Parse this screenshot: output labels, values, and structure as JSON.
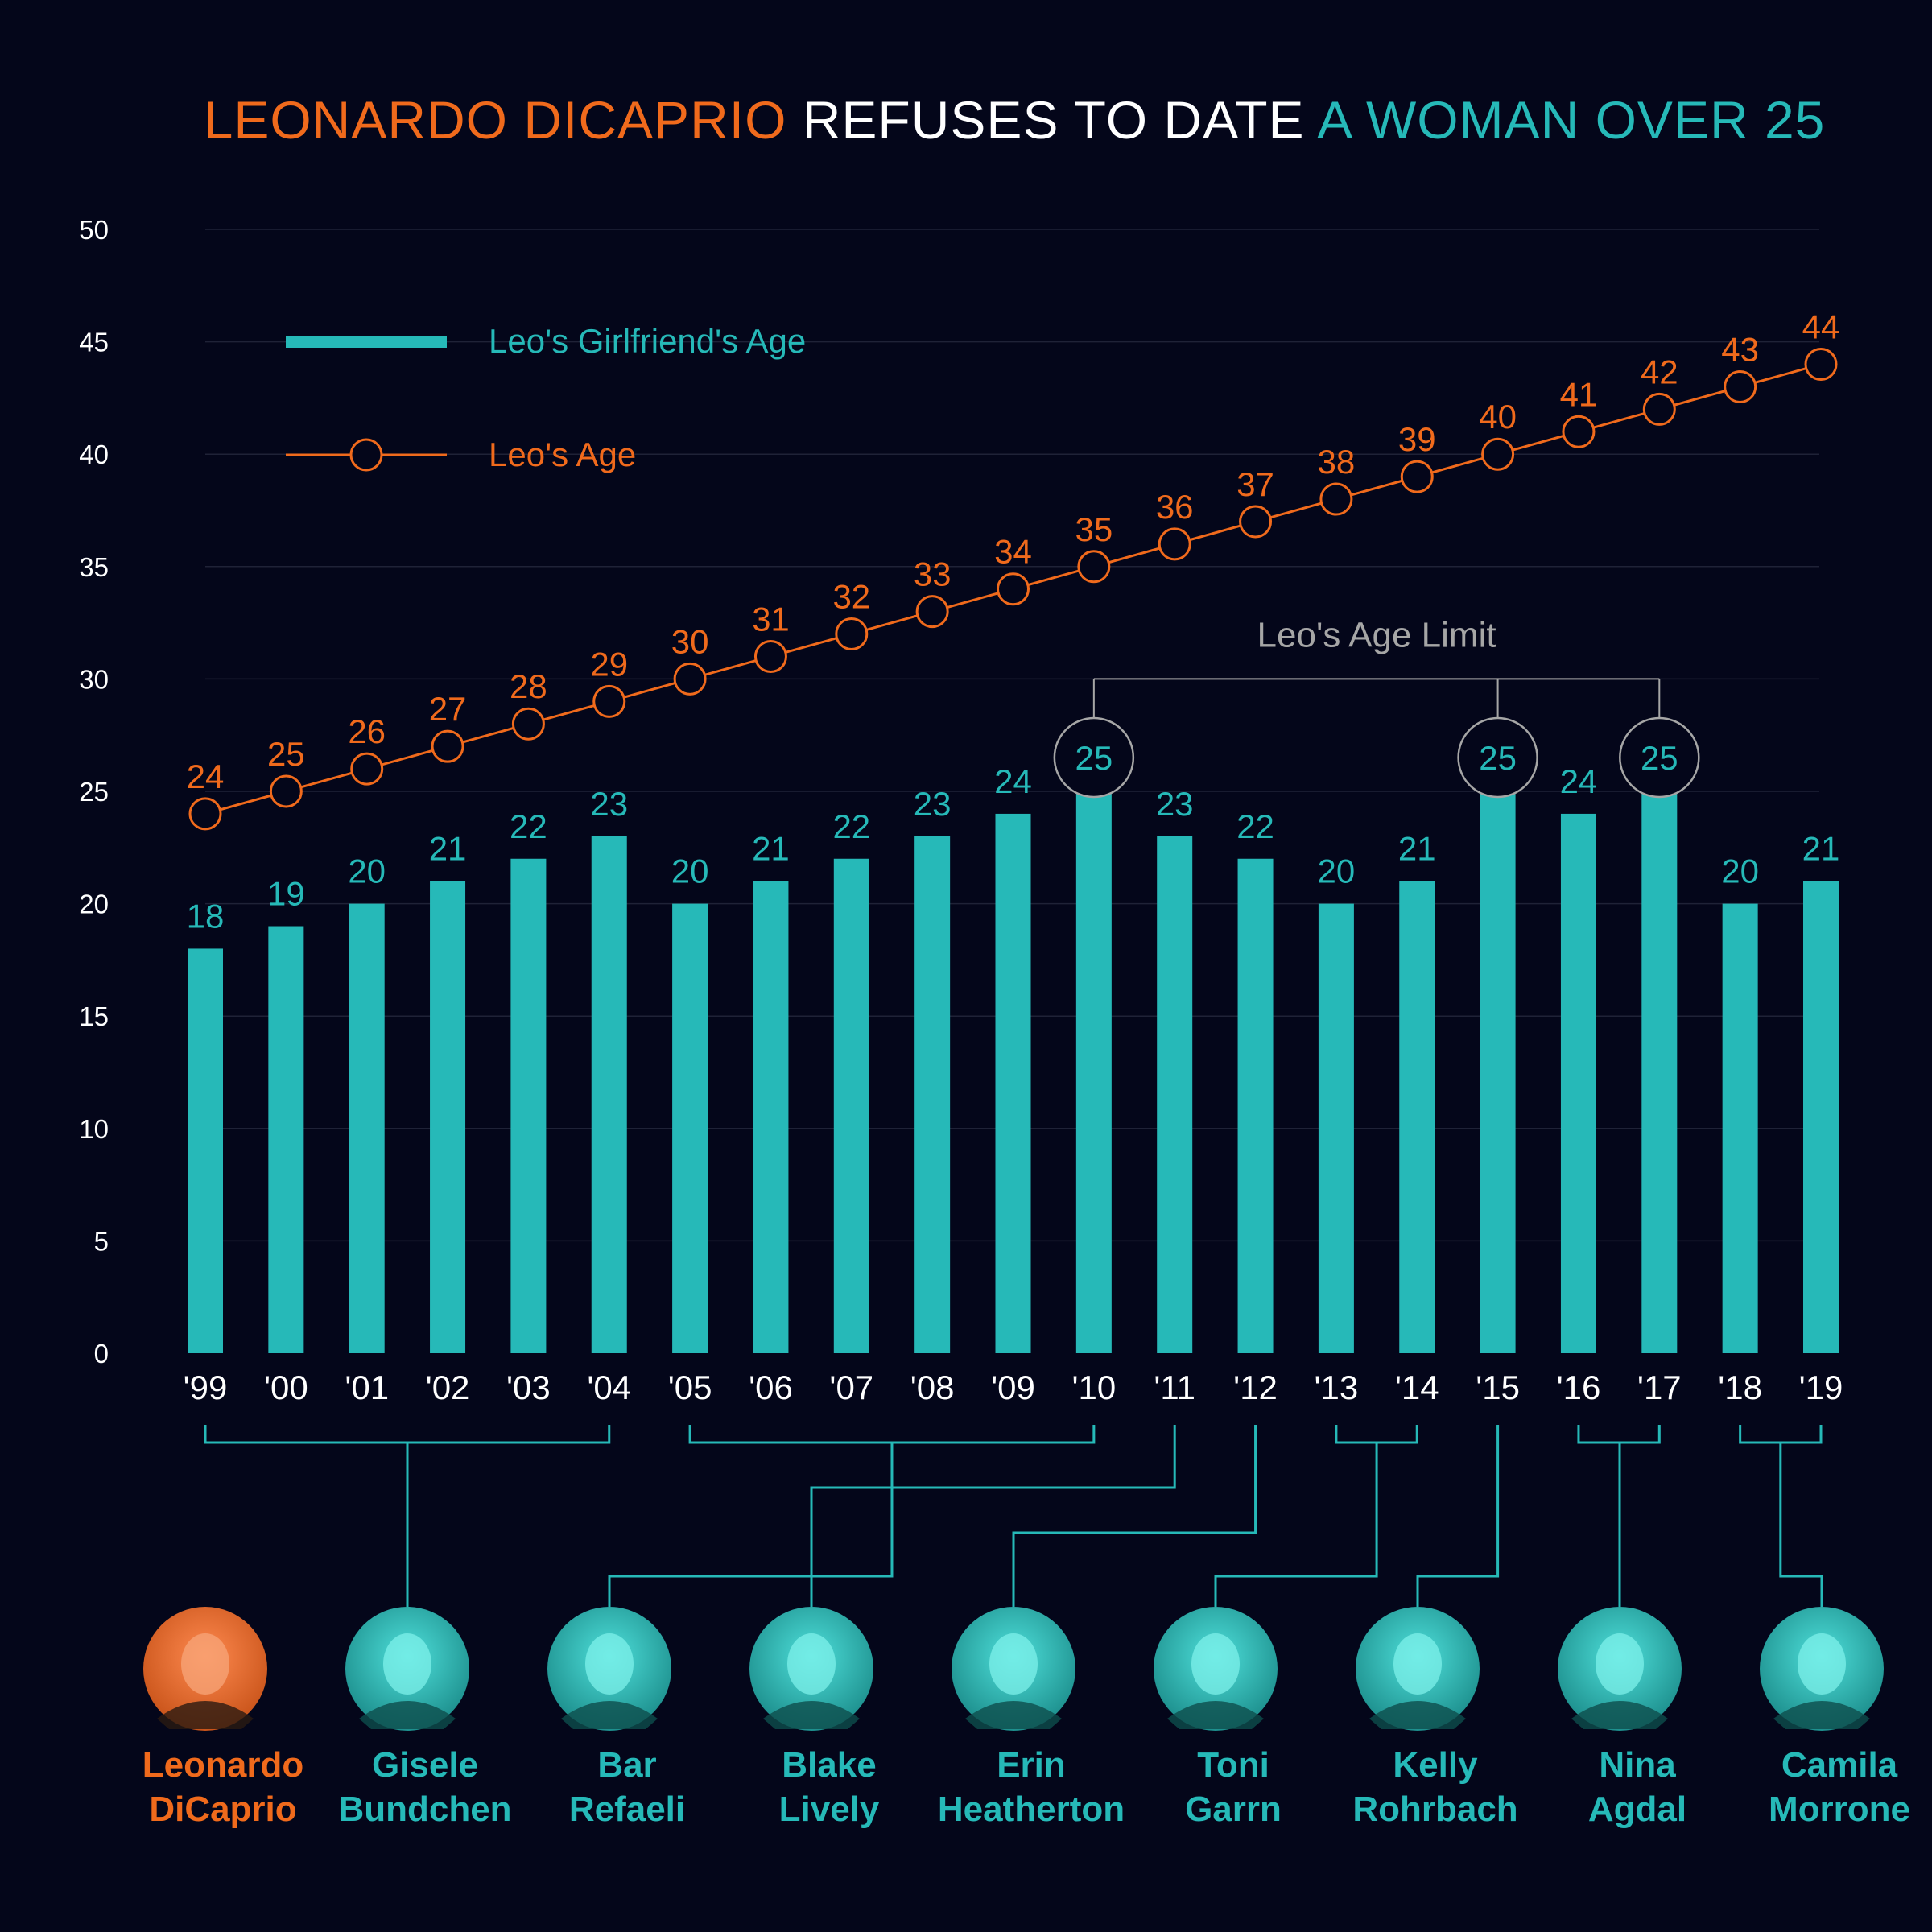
{
  "colors": {
    "background": "#04061a",
    "orange": "#f06a1c",
    "teal": "#26b9b8",
    "white": "#ffffff",
    "grey": "#a6a6a6",
    "grid": "#1f2237"
  },
  "title": {
    "part1": "LEONARDO DICAPRIO",
    "part2": " REFUSES TO DATE ",
    "part3": "A WOMAN OVER 25"
  },
  "legend": {
    "bar_label": "Leo's Girlfriend's Age",
    "line_label": "Leo's Age"
  },
  "annotation": {
    "age_limit_label": "Leo's Age Limit"
  },
  "chart_data": {
    "type": "bar+line",
    "categories": [
      "'99",
      "'00",
      "'01",
      "'02",
      "'03",
      "'04",
      "'05",
      "'06",
      "'07",
      "'08",
      "'09",
      "'10",
      "'11",
      "'12",
      "'13",
      "'14",
      "'15",
      "'16",
      "'17",
      "'18",
      "'19"
    ],
    "series": [
      {
        "name": "Leo's Girlfriend's Age",
        "type": "bar",
        "values": [
          18,
          19,
          20,
          21,
          22,
          23,
          20,
          21,
          22,
          23,
          24,
          25,
          23,
          22,
          20,
          21,
          25,
          24,
          25,
          20,
          21
        ]
      },
      {
        "name": "Leo's Age",
        "type": "line",
        "values": [
          24,
          25,
          26,
          27,
          28,
          29,
          30,
          31,
          32,
          33,
          34,
          35,
          36,
          37,
          38,
          39,
          40,
          41,
          42,
          43,
          44
        ]
      }
    ],
    "ylim": [
      0,
      50
    ],
    "yticks": [
      0,
      5,
      10,
      15,
      20,
      25,
      30,
      35,
      40,
      45,
      50
    ],
    "highlighted_years": [
      "'10",
      "'15",
      "'17"
    ],
    "age_limit": 25
  },
  "people": [
    {
      "first": "Leonardo",
      "last": "DiCaprio",
      "is_leo": true,
      "years": []
    },
    {
      "first": "Gisele",
      "last": "Bundchen",
      "is_leo": false,
      "years": [
        "'99",
        "'00",
        "'01",
        "'02",
        "'03",
        "'04"
      ]
    },
    {
      "first": "Bar",
      "last": "Refaeli",
      "is_leo": false,
      "years": [
        "'05",
        "'06",
        "'07",
        "'08",
        "'09",
        "'10"
      ]
    },
    {
      "first": "Blake",
      "last": "Lively",
      "is_leo": false,
      "years": [
        "'11"
      ]
    },
    {
      "first": "Erin",
      "last": "Heatherton",
      "is_leo": false,
      "years": [
        "'12"
      ]
    },
    {
      "first": "Toni",
      "last": "Garrn",
      "is_leo": false,
      "years": [
        "'13",
        "'14"
      ]
    },
    {
      "first": "Kelly",
      "last": "Rohrbach",
      "is_leo": false,
      "years": [
        "'15"
      ]
    },
    {
      "first": "Nina",
      "last": "Agdal",
      "is_leo": false,
      "years": [
        "'16",
        "'17"
      ]
    },
    {
      "first": "Camila",
      "last": "Morrone",
      "is_leo": false,
      "years": [
        "'18",
        "'19"
      ]
    }
  ]
}
